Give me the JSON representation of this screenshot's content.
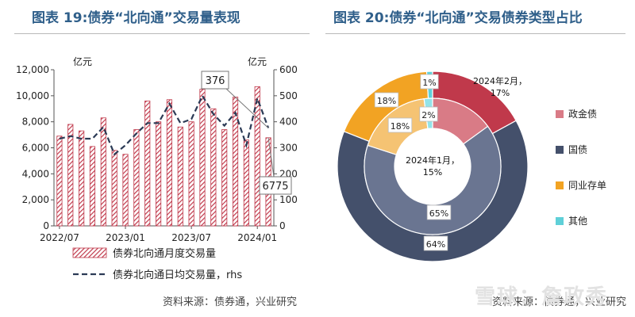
{
  "titles": {
    "left": "图表 19:债券“北向通”交易量表现",
    "right": "图表 20:债券“北向通”交易债券类型占比"
  },
  "sources": {
    "left": "资料来源：债券通，兴业研究",
    "right": "资料来源：债券通，兴业研究"
  },
  "watermark": "雪球：詹政秀",
  "colors": {
    "title": "#2f5f8a",
    "bar": "#c0394b",
    "line": "#2b3a55",
    "policy": "#c0394b",
    "treasury": "#44506b",
    "ncd": "#f2a323",
    "other": "#5fd0d8",
    "policy_inner": "#d97b86",
    "treasury_inner": "#6a7591",
    "ncd_inner": "#f5c373",
    "other_inner": "#93e3e8"
  },
  "chart_data": [
    {
      "type": "bar",
      "left_unit": "亿元",
      "right_unit": "亿元",
      "ylim": [
        0,
        12000
      ],
      "y2lim": [
        0,
        600
      ],
      "yticks": [
        "0",
        "2,000",
        "4,000",
        "6,000",
        "8,000",
        "10,000",
        "12,000"
      ],
      "y2ticks": [
        "0",
        "100",
        "200",
        "300",
        "400",
        "500",
        "600"
      ],
      "xticks": [
        "2022/07",
        "2023/01",
        "2023/07",
        "2024/01"
      ],
      "categories": [
        "2022/07",
        "2022/08",
        "2022/09",
        "2022/10",
        "2022/11",
        "2022/12",
        "2023/01",
        "2023/02",
        "2023/03",
        "2023/04",
        "2023/05",
        "2023/06",
        "2023/07",
        "2023/08",
        "2023/09",
        "2023/10",
        "2023/11",
        "2023/12",
        "2024/01",
        "2024/02"
      ],
      "series": [
        {
          "name": "债券北向通月度交易量",
          "axis": "left",
          "values": [
            6900,
            7800,
            7300,
            6100,
            8300,
            5800,
            5500,
            7400,
            9600,
            8000,
            9700,
            7600,
            8000,
            10500,
            9000,
            7400,
            9900,
            6600,
            10700,
            6775
          ]
        },
        {
          "name": "债券北向通日均交易量，rhs",
          "axis": "right",
          "values": [
            335,
            345,
            335,
            335,
            380,
            275,
            310,
            355,
            395,
            395,
            470,
            395,
            410,
            500,
            430,
            385,
            435,
            310,
            490,
            376
          ]
        }
      ],
      "annotations": [
        {
          "label": "376",
          "series": 1,
          "index": 19
        },
        {
          "label": "6775",
          "series": 0,
          "index": 19
        }
      ],
      "legend": [
        "债券北向通月度交易量",
        "债券北向通日均交易量，rhs"
      ]
    },
    {
      "type": "pie",
      "categories": [
        "政金债",
        "国债",
        "同业存单",
        "其他"
      ],
      "outer": {
        "label": "2024年2月，",
        "values": [
          17,
          64,
          18,
          1
        ]
      },
      "inner": {
        "label": "2024年1月，",
        "values": [
          15,
          65,
          18,
          2
        ]
      },
      "legend": [
        "政金债",
        "国债",
        "同业存单",
        "其他"
      ]
    }
  ]
}
